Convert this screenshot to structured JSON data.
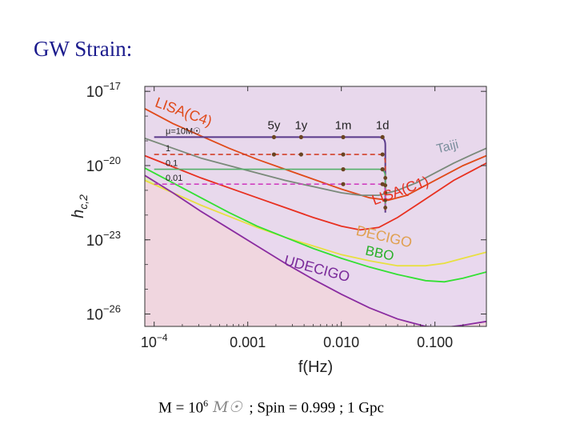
{
  "slide": {
    "title": "GW Strain:",
    "caption_m": "M = 10",
    "caption_exp": "6",
    "caption_msun": "M☉",
    "caption_rest": "; Spin = 0.999 ; 1 Gpc"
  },
  "chart_data": {
    "type": "line",
    "xlabel": "f(Hz)",
    "ylabel": "h",
    "ylabel_sub": "c,2",
    "x_scale": "log",
    "y_scale": "log",
    "xlim_log10": [
      -4.1,
      -0.45
    ],
    "ylim_log10": [
      -26.5,
      -16.8
    ],
    "x_ticks": [
      {
        "log": -4,
        "label": "10",
        "sup": "−4"
      },
      {
        "log": -3,
        "label": "0.001"
      },
      {
        "log": -2,
        "label": "0.010"
      },
      {
        "log": -1,
        "label": "0.100"
      }
    ],
    "y_ticks": [
      {
        "log": -17,
        "label": "10",
        "sup": "−17"
      },
      {
        "log": -20,
        "label": "10",
        "sup": "−20"
      },
      {
        "log": -23,
        "label": "10",
        "sup": "−23"
      },
      {
        "log": -26,
        "label": "10",
        "sup": "−26"
      }
    ],
    "detectors": [
      {
        "name": "LISA(C4)",
        "color": "#e04a1a",
        "fill": "#b07a3a",
        "fill_opacity": 0.6,
        "log_f": [
          -4.1,
          -3.8,
          -3.5,
          -3.2,
          -2.9,
          -2.6,
          -2.3,
          -2.0,
          -1.7,
          -1.5,
          -1.3,
          -1.1,
          -0.9,
          -0.7,
          -0.45
        ],
        "log_h": [
          -17.7,
          -18.3,
          -18.8,
          -19.3,
          -19.75,
          -20.15,
          -20.55,
          -20.95,
          -21.3,
          -21.4,
          -21.2,
          -20.8,
          -20.4,
          -20.0,
          -19.6
        ]
      },
      {
        "name": "Taiji",
        "color": "#7a8a7a",
        "fill": "#b9b9a0",
        "fill_opacity": 0.45,
        "log_f": [
          -4.1,
          -3.8,
          -3.5,
          -3.2,
          -2.9,
          -2.6,
          -2.3,
          -2.0,
          -1.8,
          -1.6,
          -1.4,
          -1.2,
          -1.0,
          -0.8,
          -0.6,
          -0.45
        ],
        "log_h": [
          -18.9,
          -19.3,
          -19.7,
          -20.0,
          -20.3,
          -20.6,
          -20.85,
          -21.1,
          -21.2,
          -21.2,
          -21.0,
          -20.7,
          -20.3,
          -19.9,
          -19.55,
          -19.3
        ]
      },
      {
        "name": "LISA(C1)",
        "color": "#e83020",
        "fill": "#e8e0c0",
        "fill_opacity": 0.4,
        "log_f": [
          -4.1,
          -3.8,
          -3.5,
          -3.2,
          -2.9,
          -2.6,
          -2.3,
          -2.0,
          -1.8,
          -1.6,
          -1.4,
          -1.2,
          -1.0,
          -0.8,
          -0.6,
          -0.45
        ],
        "log_h": [
          -19.6,
          -20.05,
          -20.5,
          -20.9,
          -21.3,
          -21.7,
          -22.1,
          -22.45,
          -22.6,
          -22.5,
          -22.1,
          -21.6,
          -21.1,
          -20.6,
          -20.2,
          -19.9
        ]
      },
      {
        "name": "DECIGO",
        "color": "#e8e040",
        "fill": "#d6ecb0",
        "fill_opacity": 0.8,
        "log_f": [
          -4.1,
          -3.8,
          -3.5,
          -3.2,
          -2.9,
          -2.6,
          -2.3,
          -2.0,
          -1.7,
          -1.4,
          -1.1,
          -0.9,
          -0.7,
          -0.45
        ],
        "log_h": [
          -20.6,
          -21.1,
          -21.6,
          -22.05,
          -22.5,
          -22.9,
          -23.25,
          -23.6,
          -23.85,
          -24.05,
          -24.05,
          -23.95,
          -23.75,
          -23.5
        ]
      },
      {
        "name": "BBO",
        "color": "#33e033",
        "fill": "#f0d0dc",
        "fill_opacity": 0.6,
        "log_f": [
          -4.1,
          -3.8,
          -3.5,
          -3.2,
          -2.9,
          -2.6,
          -2.3,
          -2.0,
          -1.7,
          -1.4,
          -1.1,
          -0.9,
          -0.7,
          -0.45
        ],
        "log_h": [
          -20.1,
          -20.7,
          -21.3,
          -21.9,
          -22.45,
          -22.9,
          -23.35,
          -23.75,
          -24.1,
          -24.4,
          -24.65,
          -24.7,
          -24.55,
          -24.3
        ]
      },
      {
        "name": "UDECIGO",
        "color": "#8a2ca0",
        "fill": "#e8d8ef",
        "fill_opacity": 0.9,
        "log_f": [
          -4.1,
          -3.8,
          -3.5,
          -3.2,
          -2.9,
          -2.6,
          -2.3,
          -2.0,
          -1.7,
          -1.4,
          -1.1,
          -0.9,
          -0.7,
          -0.45
        ],
        "log_h": [
          -20.4,
          -21.1,
          -21.85,
          -22.55,
          -23.25,
          -23.95,
          -24.6,
          -25.2,
          -25.75,
          -26.2,
          -26.5,
          -26.55,
          -26.45,
          -26.3
        ]
      }
    ],
    "signals": [
      {
        "name": "μ=10M☉",
        "color": "#5a3a8a",
        "dashed": false,
        "log_h": -18.85
      },
      {
        "name": "1",
        "color": "#d2402a",
        "dashed": true,
        "log_h": -19.55
      },
      {
        "name": "0.1",
        "color": "#55b06a",
        "dashed": false,
        "log_h": -20.15
      },
      {
        "name": "0.01",
        "color": "#d040c0",
        "dashed": true,
        "log_h": -20.75
      }
    ],
    "signal_start_log_f": -4.0,
    "signal_end_log_f": -1.53,
    "time_markers": [
      {
        "label": "5y",
        "log_f": -2.72
      },
      {
        "label": "1y",
        "log_f": -2.43
      },
      {
        "label": "1m",
        "log_f": -1.98
      },
      {
        "label": "1d",
        "log_f": -1.56
      }
    ],
    "detector_labels": [
      {
        "text": "LISA(C4)",
        "color": "#e04a1a",
        "log_f": -4.0,
        "log_h": -17.6,
        "angle": 20,
        "size": 18
      },
      {
        "text": "Taiji",
        "color": "#7a8e9c",
        "log_f": -0.97,
        "log_h": -19.5,
        "angle": -14,
        "size": 16
      },
      {
        "text": "LISA(C1)",
        "color": "#e83020",
        "log_f": -1.65,
        "log_h": -21.6,
        "angle": -20,
        "size": 18
      },
      {
        "text": "DECIGO",
        "color": "#e0a050",
        "log_f": -1.85,
        "log_h": -22.8,
        "angle": 13,
        "size": 18
      },
      {
        "text": "BBO",
        "color": "#28b028",
        "log_f": -1.75,
        "log_h": -23.6,
        "angle": 12,
        "size": 17
      },
      {
        "text": "UDECIGO",
        "color": "#7a2a9a",
        "log_f": -2.62,
        "log_h": -24.0,
        "angle": 15,
        "size": 18
      }
    ]
  }
}
